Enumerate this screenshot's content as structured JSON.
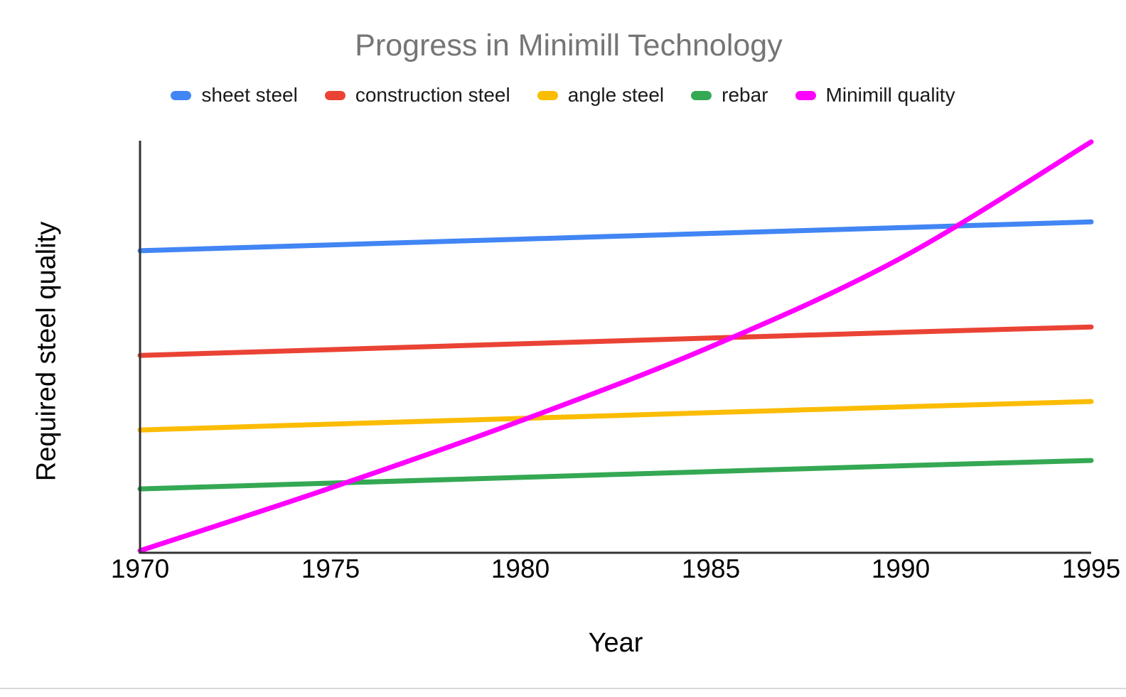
{
  "page": {
    "background": "#ffffff",
    "bottom_divider_color": "#d9d9d9"
  },
  "chart_data": {
    "type": "line",
    "title": "Progress in Minimill Technology",
    "title_color": "#757575",
    "xlabel": "Year",
    "ylabel": "Required steel quality",
    "x": [
      1970,
      1975,
      1980,
      1985,
      1990,
      1995
    ],
    "xlim": [
      1970,
      1995
    ],
    "ylim": [
      0,
      100
    ],
    "y_tick_labels_visible": false,
    "grid": false,
    "legend_position": "top",
    "axis_color": "#333333",
    "line_width": 7,
    "series": [
      {
        "name": "sheet steel",
        "color": "#4285F4",
        "smooth": true,
        "values": [
          73.3,
          74.7,
          76.1,
          77.5,
          78.9,
          80.3
        ]
      },
      {
        "name": "construction steel",
        "color": "#EA4335",
        "smooth": true,
        "values": [
          47.9,
          49.3,
          50.7,
          52.1,
          53.5,
          54.8
        ]
      },
      {
        "name": "angle steel",
        "color": "#FBBC04",
        "smooth": true,
        "values": [
          29.8,
          31.2,
          32.6,
          34.0,
          35.4,
          36.7
        ]
      },
      {
        "name": "rebar",
        "color": "#34A853",
        "smooth": true,
        "values": [
          15.5,
          16.9,
          18.3,
          19.7,
          21.1,
          22.4
        ]
      },
      {
        "name": "Minimill quality",
        "color": "#FF00FF",
        "smooth": true,
        "values": [
          0.5,
          15.7,
          32.0,
          50.0,
          71.5,
          99.7
        ]
      }
    ]
  }
}
